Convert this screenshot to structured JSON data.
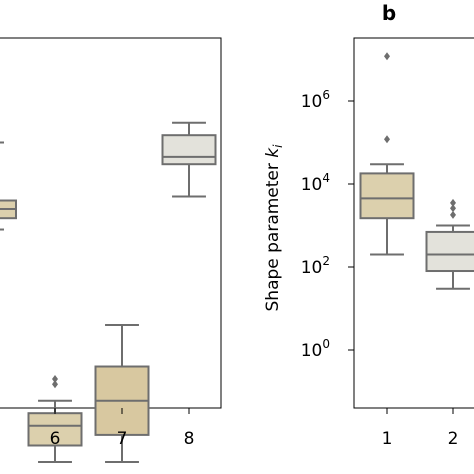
{
  "chart_data": [
    {
      "type": "box",
      "panel_label": "",
      "categories": [
        "6",
        "7",
        "8"
      ],
      "box_colors": [
        "#dcd0ad",
        "#d8c8a0",
        "#e3e2db"
      ],
      "boxes": [
        {
          "category": "6",
          "whisker_low": 0.002,
          "q1": 0.005,
          "median": 0.015,
          "q3": 0.03,
          "whisker_high": 0.06,
          "outliers": [
            0.15,
            0.2
          ]
        },
        {
          "category": "7",
          "whisker_low": 0.002,
          "q1": 0.009,
          "median": 0.06,
          "q3": 0.4,
          "whisker_high": 4,
          "outliers": []
        },
        {
          "category": "8",
          "whisker_low": 5000,
          "q1": 30000,
          "median": 45000,
          "q3": 150000,
          "whisker_high": 300000,
          "outliers": []
        }
      ],
      "partial_boxes_left_edge": [
        {
          "q1": 1500,
          "median": 2500,
          "q3": 4000,
          "whisker_low": 800,
          "whisker_high": 100000
        }
      ],
      "ylog": true
    },
    {
      "type": "box",
      "panel_label": "b",
      "ylabel": "Shape parameter k_i",
      "ylabel_main": "Shape parameter ",
      "ylabel_var": "k",
      "ylabel_sub": "i",
      "yticks": [
        {
          "base": "10",
          "exp": "0",
          "value": 1
        },
        {
          "base": "10",
          "exp": "2",
          "value": 100
        },
        {
          "base": "10",
          "exp": "4",
          "value": 10000
        },
        {
          "base": "10",
          "exp": "6",
          "value": 1000000
        }
      ],
      "categories": [
        "1",
        "2"
      ],
      "box_colors": [
        "#dcd0ad",
        "#e3e2db"
      ],
      "boxes": [
        {
          "category": "1",
          "whisker_low": 200,
          "q1": 1500,
          "median": 4500,
          "q3": 18000,
          "whisker_high": 30000,
          "outliers": [
            120000,
            12000000
          ]
        },
        {
          "category": "2",
          "whisker_low": 30,
          "q1": 80,
          "median": 200,
          "q3": 700,
          "whisker_high": 1000,
          "outliers": [
            1800,
            2600,
            3500
          ]
        }
      ],
      "ylog": true,
      "ylim": [
        0.05,
        50000000
      ]
    }
  ]
}
